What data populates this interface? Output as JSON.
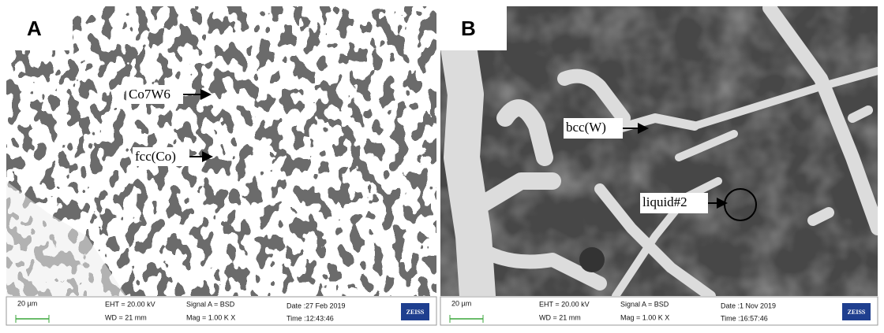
{
  "panels": [
    {
      "label": "A",
      "annotations": [
        "Co7W6",
        "fcc(Co)"
      ],
      "info": {
        "scale_bar": "20 µm",
        "eht": "EHT = 20.00 kV",
        "wd": "WD =  21 mm",
        "signal": "Signal A = BSD",
        "mag": "Mag =    1.00 K X",
        "date": "Date :27 Feb 2019",
        "time": "Time :12:43:46",
        "logo": "ZEISS"
      }
    },
    {
      "label": "B",
      "annotations": [
        "bcc(W)",
        "liquid#2"
      ],
      "info": {
        "scale_bar": "20 µm",
        "eht": "EHT = 20.00 kV",
        "wd": "WD =  21 mm",
        "signal": "Signal A = BSD",
        "mag": "Mag =    1.00 K X",
        "date": "Date :1 Nov 2019",
        "time": "Time :16:57:46",
        "logo": "ZEISS"
      }
    }
  ]
}
